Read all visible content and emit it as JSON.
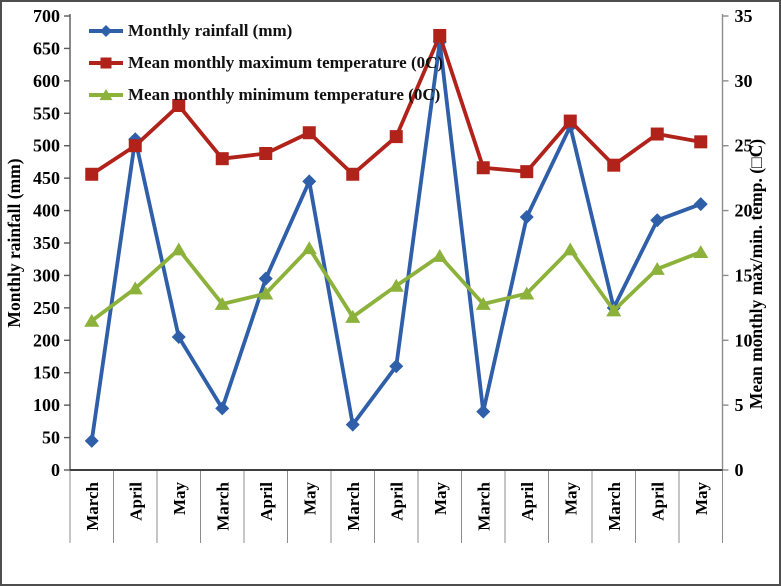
{
  "chart_data": {
    "type": "line",
    "categories": [
      "March",
      "April",
      "May",
      "March",
      "April",
      "May",
      "March",
      "April",
      "May",
      "March",
      "April",
      "May",
      "March",
      "April",
      "May"
    ],
    "series": [
      {
        "name": "Monthly rainfall (mm)",
        "axis": "left",
        "color": "#2E5FA8",
        "marker": "diamond",
        "values": [
          45,
          510,
          205,
          95,
          295,
          445,
          70,
          160,
          660,
          90,
          390,
          530,
          250,
          385,
          410
        ]
      },
      {
        "name": "Mean monthly maximum temperature (0C)",
        "axis": "right",
        "color": "#B0221A",
        "marker": "square",
        "values": [
          22.8,
          25.0,
          28.1,
          24.0,
          24.4,
          26.0,
          22.8,
          25.7,
          33.5,
          23.3,
          23.0,
          26.9,
          23.5,
          25.9,
          25.3
        ]
      },
      {
        "name": "Mean monthly minimum temperature (0C)",
        "axis": "right",
        "color": "#8CB23C",
        "marker": "triangle",
        "values": [
          11.5,
          14.0,
          17.0,
          12.8,
          13.6,
          17.1,
          11.8,
          14.2,
          16.5,
          12.8,
          13.6,
          17.0,
          12.3,
          15.5,
          16.8
        ]
      }
    ],
    "title": "",
    "xlabel": "",
    "ylabel_left": "Monthly rainfall (mm)",
    "ylabel_right": "Mean monthly max/min. temp. (□C)",
    "ylim_left": [
      0,
      700
    ],
    "ylim_right": [
      0,
      35
    ],
    "left_ticks": [
      0,
      50,
      100,
      150,
      200,
      250,
      300,
      350,
      400,
      450,
      500,
      550,
      600,
      650,
      700
    ],
    "right_ticks": [
      0,
      5,
      10,
      15,
      20,
      25,
      30,
      35
    ],
    "grid": false,
    "legend_position": "top-left-inside"
  }
}
